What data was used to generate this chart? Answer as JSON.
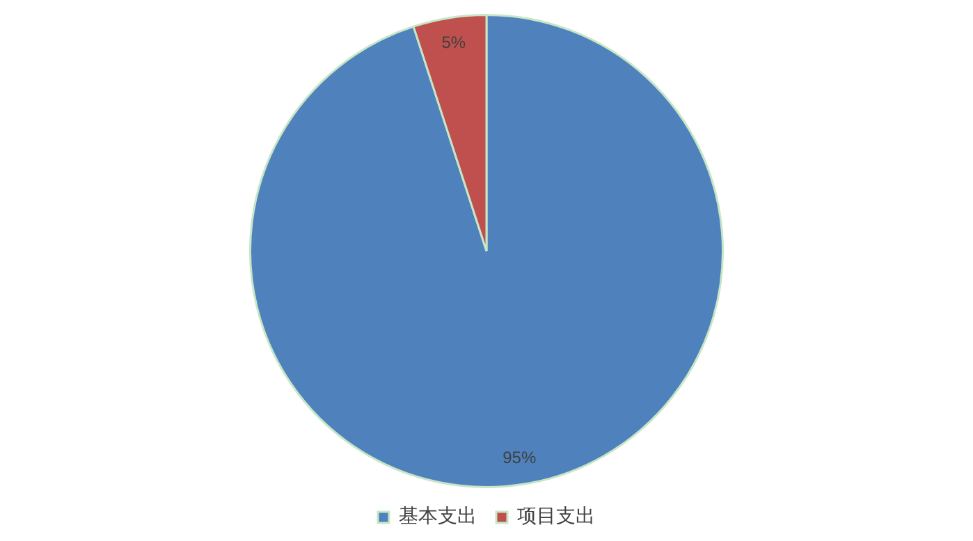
{
  "chart_data": {
    "type": "pie",
    "categories": [
      "基本支出",
      "项目支出"
    ],
    "values": [
      95,
      5
    ],
    "colors": [
      "#4f81bd",
      "#c0504d"
    ],
    "value_labels": [
      "95%",
      "5%"
    ],
    "legend": "bottom"
  }
}
